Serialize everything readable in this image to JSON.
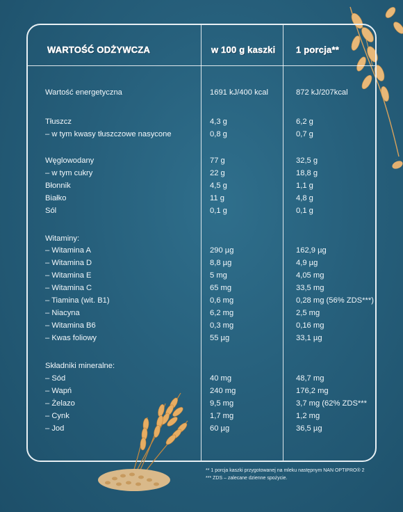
{
  "table": {
    "headers": {
      "nutrient": "WARTOŚĆ ODŻYWCZA",
      "per100": "w 100 g kaszki",
      "portion": "1 porcja**"
    },
    "rows": [
      {
        "name": "Wartość energetyczna",
        "per100": "1691 kJ/400 kcal",
        "portion": "872 kJ/207kcal"
      },
      {
        "name": "Tłuszcz",
        "per100": "4,3 g",
        "portion": "6,2 g"
      },
      {
        "name": "– w tym kwasy tłuszczowe nasycone",
        "per100": "0,8 g",
        "portion": "0,7 g"
      },
      {
        "name": "Węglowodany",
        "per100": "77 g",
        "portion": "32,5 g"
      },
      {
        "name": "– w tym cukry",
        "per100": "22 g",
        "portion": "18,8 g"
      },
      {
        "name": "Błonnik",
        "per100": "4,5 g",
        "portion": "1,1 g"
      },
      {
        "name": "Białko",
        "per100": "11 g",
        "portion": "4,8 g"
      },
      {
        "name": "Sól",
        "per100": "0,1 g",
        "portion": "0,1 g"
      },
      {
        "name": "Witaminy:",
        "per100": "",
        "portion": ""
      },
      {
        "name": "– Witamina A",
        "per100": "290 µg",
        "portion": "162,9 µg"
      },
      {
        "name": "– Witamina D",
        "per100": "8,8 µg",
        "portion": "4,9 µg"
      },
      {
        "name": "– Witamina E",
        "per100": "5 mg",
        "portion": "4,05 mg"
      },
      {
        "name": "– Witamina C",
        "per100": "65 mg",
        "portion": "33,5 mg"
      },
      {
        "name": "– Tiamina (wit. B1)",
        "per100": "0,6 mg",
        "portion": "0,28 mg (56% ZDS***)"
      },
      {
        "name": "– Niacyna",
        "per100": "6,2 mg",
        "portion": "2,5 mg"
      },
      {
        "name": "– Witamina B6",
        "per100": "0,3 mg",
        "portion": "0,16 mg"
      },
      {
        "name": "– Kwas foliowy",
        "per100": "55 µg",
        "portion": "33,1 µg"
      },
      {
        "name": "Składniki mineralne:",
        "per100": "",
        "portion": ""
      },
      {
        "name": "– Sód",
        "per100": "40 mg",
        "portion": "48,7 mg"
      },
      {
        "name": "– Wapń",
        "per100": "240 mg",
        "portion": "176,2 mg"
      },
      {
        "name": "– Żelazo",
        "per100": "9,5 mg",
        "portion": "3,7 mg (62% ZDS***"
      },
      {
        "name": "– Cynk",
        "per100": "1,7 mg",
        "portion": "1,2 mg"
      },
      {
        "name": "– Jod",
        "per100": "60 µg",
        "portion": "36,5 µg"
      }
    ]
  },
  "footnotes": [
    "** 1 porcja kaszki przygotowanej na mleku następnym NAN OPTIPRO® 2",
    "*** ZDS – zalecane dzienne spożycie."
  ],
  "colors": {
    "background": "#265f7b",
    "lines": "#e8f0f4",
    "text": "#ffffff",
    "grain": "#e0a85a"
  },
  "decorations": [
    "wheat-ears-icon",
    "oat-sprig-icon",
    "grain-pile-icon"
  ]
}
